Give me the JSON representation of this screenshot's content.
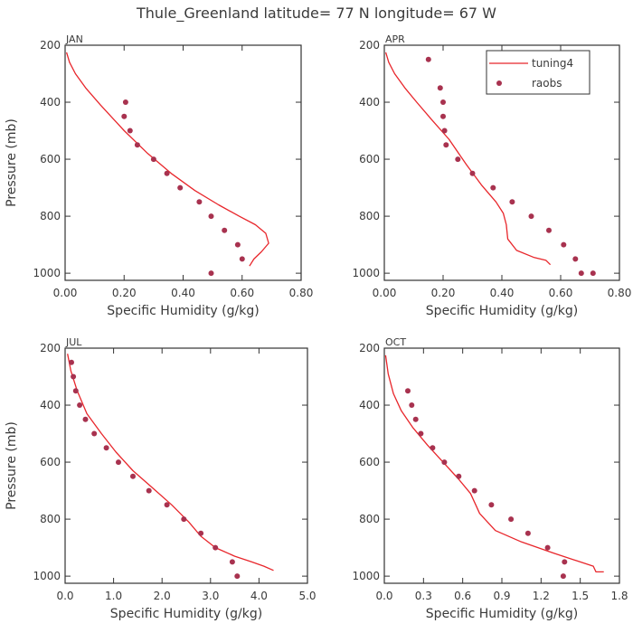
{
  "figure": {
    "title": "Thule_Greenland  latitude= 77 N longitude= 67 W"
  },
  "legend": {
    "entries": [
      {
        "label": "tuning4",
        "kind": "line",
        "color": "#e8262b"
      },
      {
        "label": "raobs",
        "kind": "marker",
        "color": "#a8324f"
      }
    ],
    "placement": "top-right of APR panel"
  },
  "colors": {
    "model": "#e8262b",
    "obs": "#a8324f",
    "axes": "#333333",
    "text": "#3a3a3a"
  },
  "chart_data": [
    {
      "type": "line",
      "panel": "JAN",
      "xlabel": "Specific Humidity (g/kg)",
      "ylabel": "Pressure (mb)",
      "xlim": [
        0,
        0.8
      ],
      "ylim": [
        1025,
        200
      ],
      "xticks": [
        0,
        0.2,
        0.4,
        0.6,
        0.8
      ],
      "xtick_labels": [
        "0.00",
        "0.20",
        "0.40",
        "0.60",
        "0.80"
      ],
      "yticks": [
        200,
        400,
        600,
        800,
        1000
      ],
      "ytick_labels": [
        "200",
        "400",
        "600",
        "800",
        "1000"
      ],
      "series": [
        {
          "name": "tuning4",
          "kind": "line",
          "x": [
            0.005,
            0.015,
            0.035,
            0.07,
            0.12,
            0.2,
            0.28,
            0.36,
            0.44,
            0.52,
            0.59,
            0.645,
            0.68,
            0.69,
            0.665,
            0.64,
            0.625
          ],
          "y": [
            225,
            260,
            300,
            350,
            410,
            500,
            580,
            650,
            710,
            760,
            800,
            830,
            860,
            895,
            925,
            950,
            975
          ]
        },
        {
          "name": "raobs",
          "kind": "scatter",
          "x": [
            0.205,
            0.2,
            0.22,
            0.245,
            0.3,
            0.345,
            0.39,
            0.455,
            0.495,
            0.54,
            0.585,
            0.6,
            0.495
          ],
          "y": [
            400,
            450,
            500,
            550,
            600,
            650,
            700,
            750,
            800,
            850,
            900,
            950,
            1000
          ]
        }
      ]
    },
    {
      "type": "line",
      "panel": "APR",
      "xlabel": "Specific Humidity (g/kg)",
      "ylabel": "Pressure (mb)",
      "xlim": [
        0,
        0.8
      ],
      "ylim": [
        1025,
        200
      ],
      "xticks": [
        0,
        0.2,
        0.4,
        0.6,
        0.8
      ],
      "xtick_labels": [
        "0.00",
        "0.20",
        "0.40",
        "0.60",
        "0.80"
      ],
      "yticks": [
        200,
        400,
        600,
        800,
        1000
      ],
      "ytick_labels": [
        "200",
        "400",
        "600",
        "800",
        "1000"
      ],
      "series": [
        {
          "name": "tuning4",
          "kind": "line",
          "x": [
            0.005,
            0.015,
            0.035,
            0.07,
            0.11,
            0.16,
            0.22,
            0.28,
            0.33,
            0.38,
            0.405,
            0.415,
            0.42,
            0.45,
            0.51,
            0.55,
            0.565
          ],
          "y": [
            225,
            260,
            300,
            350,
            400,
            460,
            530,
            620,
            690,
            750,
            790,
            830,
            880,
            920,
            945,
            955,
            970
          ]
        },
        {
          "name": "raobs",
          "kind": "scatter",
          "x": [
            0.15,
            0.19,
            0.2,
            0.2,
            0.205,
            0.21,
            0.25,
            0.3,
            0.37,
            0.435,
            0.5,
            0.56,
            0.61,
            0.65,
            0.71,
            0.67
          ],
          "y": [
            250,
            350,
            400,
            450,
            500,
            550,
            600,
            650,
            700,
            750,
            800,
            850,
            900,
            950,
            1000,
            1000
          ]
        }
      ]
    },
    {
      "type": "line",
      "panel": "JUL",
      "xlabel": "Specific Humidity (g/kg)",
      "ylabel": "Pressure (mb)",
      "xlim": [
        0,
        5
      ],
      "ylim": [
        1025,
        200
      ],
      "xticks": [
        0,
        1,
        2,
        3,
        4,
        5
      ],
      "xtick_labels": [
        "0.0",
        "1.0",
        "2.0",
        "3.0",
        "4.0",
        "5.0"
      ],
      "yticks": [
        200,
        400,
        600,
        800,
        1000
      ],
      "ytick_labels": [
        "200",
        "400",
        "600",
        "800",
        "1000"
      ],
      "series": [
        {
          "name": "tuning4",
          "kind": "line",
          "x": [
            0.05,
            0.12,
            0.25,
            0.45,
            0.75,
            1.05,
            1.4,
            1.8,
            2.2,
            2.55,
            2.8,
            3.1,
            3.5,
            3.85,
            4.1,
            4.3
          ],
          "y": [
            220,
            280,
            350,
            430,
            500,
            565,
            630,
            690,
            750,
            810,
            860,
            900,
            930,
            950,
            965,
            980
          ]
        },
        {
          "name": "raobs",
          "kind": "scatter",
          "x": [
            0.13,
            0.17,
            0.22,
            0.3,
            0.42,
            0.6,
            0.85,
            1.1,
            1.4,
            1.73,
            2.1,
            2.45,
            2.8,
            3.1,
            3.45,
            3.55
          ],
          "y": [
            250,
            300,
            350,
            400,
            450,
            500,
            550,
            600,
            650,
            700,
            750,
            800,
            850,
            900,
            950,
            1000
          ]
        }
      ]
    },
    {
      "type": "line",
      "panel": "OCT",
      "xlabel": "Specific Humidity (g/kg)",
      "ylabel": "Pressure (mb)",
      "xlim": [
        0,
        1.8
      ],
      "ylim": [
        1025,
        200
      ],
      "xticks": [
        0,
        0.3,
        0.6,
        0.9,
        1.2,
        1.5,
        1.8
      ],
      "xtick_labels": [
        "0.0",
        "0.3",
        "0.6",
        "0.9",
        "1.2",
        "1.5",
        "1.8"
      ],
      "yticks": [
        200,
        400,
        600,
        800,
        1000
      ],
      "ytick_labels": [
        "200",
        "400",
        "600",
        "800",
        "1000"
      ],
      "series": [
        {
          "name": "tuning4",
          "kind": "line",
          "x": [
            0.01,
            0.03,
            0.07,
            0.13,
            0.22,
            0.33,
            0.45,
            0.57,
            0.66,
            0.7,
            0.73,
            0.85,
            1.05,
            1.3,
            1.5,
            1.6,
            1.62,
            1.68
          ],
          "y": [
            225,
            290,
            360,
            420,
            480,
            540,
            600,
            660,
            710,
            750,
            780,
            840,
            880,
            920,
            950,
            965,
            985,
            985
          ]
        },
        {
          "name": "raobs",
          "kind": "scatter",
          "x": [
            0.18,
            0.21,
            0.24,
            0.28,
            0.37,
            0.46,
            0.57,
            0.69,
            0.82,
            0.97,
            1.1,
            1.25,
            1.38,
            1.37
          ],
          "y": [
            350,
            400,
            450,
            500,
            550,
            600,
            650,
            700,
            750,
            800,
            850,
            900,
            950,
            1000
          ]
        }
      ]
    }
  ]
}
